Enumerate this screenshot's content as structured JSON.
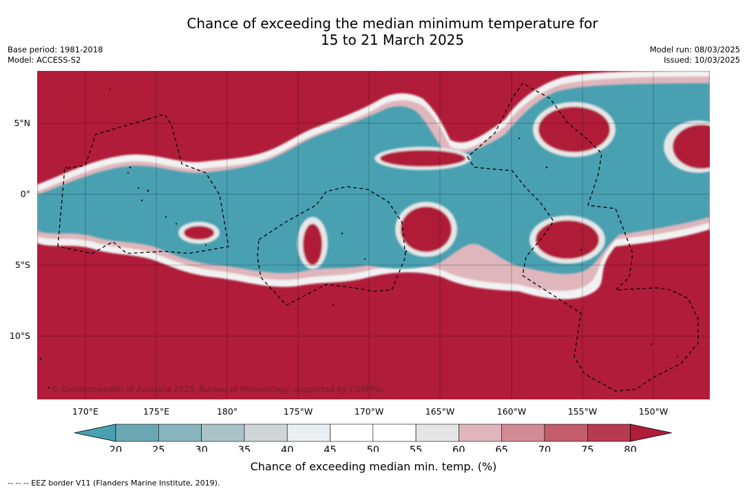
{
  "title": {
    "line1": "Chance of exceeding the median minimum temperature for",
    "line2": "15 to 21 March 2025"
  },
  "meta": {
    "base_period": "Base period: 1981-2018",
    "model": "Model: ACCESS-S2",
    "model_run": "Model run: 08/03/2025",
    "issued": "Issued: 10/03/2025"
  },
  "map": {
    "longitude_labels": [
      "170°E",
      "175°E",
      "180°",
      "175°W",
      "170°W",
      "165°W",
      "160°W",
      "155°W",
      "150°W"
    ],
    "latitude_labels": [
      "5°N",
      "0°",
      "5°S",
      "10°S"
    ],
    "copyright": "© Commonwealth of Australia 2025, Bureau of Meteorology, supported by COSPPac"
  },
  "colorbar": {
    "ticks": [
      "20",
      "25",
      "30",
      "35",
      "40",
      "45",
      "50",
      "55",
      "60",
      "65",
      "70",
      "75",
      "80"
    ],
    "label": "Chance of exceeding median min. temp. (%)",
    "colors": [
      "#48a0b1",
      "#6aa7b2",
      "#88b5bf",
      "#a9c3c9",
      "#d0d6d8",
      "#e9eff2",
      "#ffffff",
      "#ffffff",
      "#e6e6e6",
      "#deb6bc",
      "#d08b94",
      "#c45d6c",
      "#b83a51",
      "#b01c39"
    ]
  },
  "legend_note": "--  --  -- EEZ border V11 (Flanders Marine Institute, 2019)."
}
